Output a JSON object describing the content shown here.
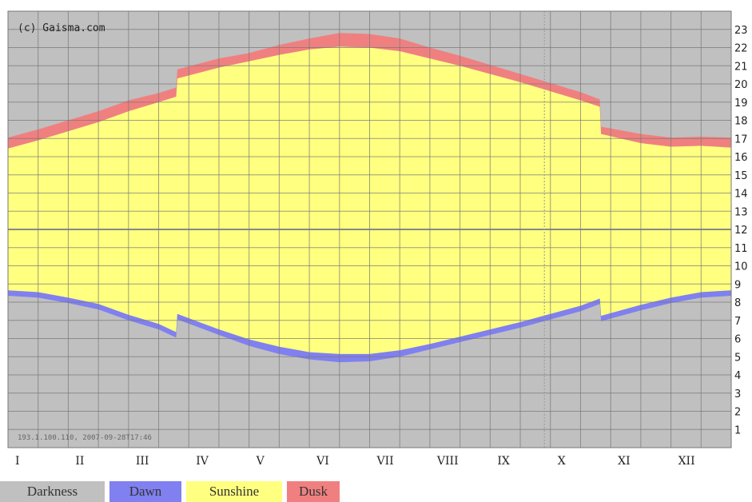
{
  "chart_data": {
    "type": "area",
    "credit": "(c) Gaisma.com",
    "footer": "193.1.100.110, 2007-09-28T17:46",
    "categories": [
      "I",
      "II",
      "III",
      "IV",
      "V",
      "VI",
      "VII",
      "VIII",
      "IX",
      "X",
      "XI",
      "XII"
    ],
    "y_ticks": [
      1,
      2,
      3,
      4,
      5,
      6,
      7,
      8,
      9,
      10,
      11,
      12,
      13,
      14,
      15,
      16,
      17,
      18,
      19,
      20,
      21,
      22,
      23
    ],
    "ylim": [
      0,
      24
    ],
    "grid": true,
    "current_date_marker_month": 8.9,
    "x_month": [
      0,
      0.5,
      1,
      1.5,
      2,
      2.5,
      2.79,
      2.81,
      3.5,
      4,
      4.5,
      5,
      5.5,
      6,
      6.5,
      7,
      7.5,
      8,
      8.5,
      9,
      9.5,
      9.82,
      9.84,
      10.5,
      11,
      11.5,
      12
    ],
    "series": [
      {
        "name": "Darkness",
        "color": "#c0c0c0"
      },
      {
        "name": "Dawn",
        "color": "#8080f0",
        "start": [
          8.35,
          8.25,
          7.95,
          7.6,
          7.0,
          6.5,
          6.05,
          7.05,
          6.2,
          5.6,
          5.15,
          4.85,
          4.7,
          4.75,
          5.0,
          5.4,
          5.8,
          6.2,
          6.6,
          7.05,
          7.5,
          7.9,
          6.95,
          7.55,
          7.95,
          8.25,
          8.35
        ],
        "end": [
          8.65,
          8.55,
          8.25,
          7.9,
          7.3,
          6.8,
          6.35,
          7.35,
          6.5,
          5.95,
          5.55,
          5.25,
          5.15,
          5.15,
          5.35,
          5.7,
          6.1,
          6.5,
          6.9,
          7.35,
          7.8,
          8.2,
          7.25,
          7.85,
          8.25,
          8.55,
          8.65
        ]
      },
      {
        "name": "Sunshine",
        "color": "#ffff80"
      },
      {
        "name": "Dusk",
        "color": "#f08080",
        "start": [
          16.45,
          16.9,
          17.4,
          17.9,
          18.5,
          19.0,
          19.3,
          20.3,
          20.9,
          21.25,
          21.6,
          21.9,
          22.05,
          22.0,
          21.8,
          21.4,
          21.0,
          20.55,
          20.1,
          19.6,
          19.1,
          18.75,
          17.25,
          16.75,
          16.55,
          16.6,
          16.5
        ],
        "end": [
          17.05,
          17.5,
          18.0,
          18.5,
          19.1,
          19.5,
          19.8,
          20.8,
          21.4,
          21.7,
          22.15,
          22.5,
          22.8,
          22.75,
          22.5,
          22.0,
          21.55,
          21.05,
          20.55,
          20.05,
          19.55,
          19.15,
          17.65,
          17.25,
          17.05,
          17.1,
          17.05
        ]
      }
    ],
    "legend": [
      "Darkness",
      "Dawn",
      "Sunshine",
      "Dusk"
    ]
  }
}
